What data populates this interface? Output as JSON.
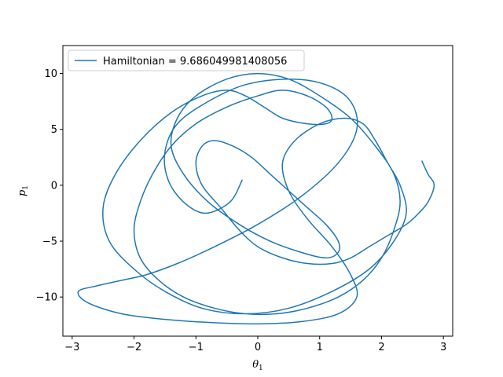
{
  "chart_data": {
    "type": "line",
    "title": "",
    "xlabel": "θ",
    "xlabel_sub": "1",
    "ylabel": "p",
    "ylabel_sub": "1",
    "xlim": [
      -3.15,
      3.15
    ],
    "ylim": [
      -13.5,
      12.5
    ],
    "xticks": [
      -3,
      -2,
      -1,
      0,
      1,
      2,
      3
    ],
    "yticks": [
      -10,
      -5,
      0,
      5,
      10
    ],
    "grid": false,
    "legend_position": "top-left",
    "series": [
      {
        "name": "Hamiltonian = 9.686049981408056",
        "color": "#1f77b4",
        "x": [
          -0.25,
          -0.45,
          -0.85,
          -1.2,
          -1.45,
          -1.5,
          -1.3,
          -0.8,
          -0.2,
          0.5,
          1.1,
          1.5,
          1.6,
          1.3,
          0.7,
          0.0,
          -0.7,
          -1.3,
          -1.8,
          -2.2,
          -2.6,
          -2.9,
          -2.75,
          -2.2,
          -1.5,
          -0.7,
          0.0,
          0.7,
          1.3,
          1.6,
          1.5,
          1.2,
          0.8,
          0.5,
          0.4,
          0.6,
          1.0,
          1.4,
          1.7,
          1.9,
          2.1,
          2.3,
          2.4,
          2.2,
          1.8,
          1.2,
          0.5,
          -0.2,
          -0.9,
          -1.5,
          -2.0,
          -2.4,
          -2.5,
          -2.3,
          -1.9,
          -1.4,
          -0.9,
          -0.5,
          -0.2,
          0.1,
          0.4,
          0.8,
          1.1,
          1.2,
          1.1,
          0.8,
          0.4,
          0.0,
          -0.5,
          -1.0,
          -1.4,
          -1.7,
          -1.9,
          -2.0,
          -1.9,
          -1.6,
          -1.2,
          -0.7,
          -0.2,
          0.3,
          0.8,
          1.3,
          1.7,
          2.0,
          2.2,
          2.3,
          2.2,
          1.9,
          1.5,
          1.0,
          0.5,
          0.0,
          -0.5,
          -1.0,
          -1.3,
          -1.4,
          -1.2,
          -0.8,
          -0.3,
          0.2,
          0.7,
          1.1,
          1.3,
          1.3,
          1.1,
          0.8,
          0.5,
          0.2,
          -0.1,
          -0.4,
          -0.7,
          -0.9,
          -1.0,
          -0.9,
          -0.6,
          -0.3,
          0.0,
          0.4,
          0.8,
          1.2,
          1.5,
          1.8,
          2.1,
          2.4,
          2.6,
          2.75,
          2.85,
          2.75,
          2.65
        ],
        "y": [
          0.5,
          -1.5,
          -2.5,
          -1.5,
          0.5,
          3.0,
          5.5,
          7.5,
          9.0,
          9.5,
          9.0,
          7.5,
          5.0,
          2.0,
          -1.0,
          -3.5,
          -5.5,
          -7.0,
          -8.0,
          -8.5,
          -9.0,
          -9.5,
          -10.5,
          -11.5,
          -12.0,
          -12.3,
          -12.4,
          -12.2,
          -11.5,
          -10.0,
          -8.0,
          -5.5,
          -3.0,
          -0.5,
          2.0,
          4.0,
          5.5,
          6.0,
          5.5,
          4.0,
          2.0,
          0.0,
          -2.5,
          -5.0,
          -7.5,
          -9.5,
          -11.0,
          -11.5,
          -11.0,
          -9.5,
          -7.5,
          -5.0,
          -2.0,
          1.0,
          4.0,
          6.5,
          8.0,
          8.5,
          8.0,
          7.0,
          6.0,
          5.5,
          5.5,
          6.0,
          7.0,
          8.0,
          8.5,
          8.0,
          7.0,
          5.5,
          3.5,
          1.0,
          -1.5,
          -4.0,
          -6.5,
          -8.5,
          -10.0,
          -11.0,
          -11.5,
          -11.5,
          -11.0,
          -10.0,
          -8.5,
          -6.5,
          -4.0,
          -1.5,
          1.0,
          3.5,
          6.0,
          8.0,
          9.5,
          10.0,
          9.5,
          8.0,
          6.0,
          3.5,
          1.0,
          -1.5,
          -3.5,
          -5.0,
          -6.0,
          -6.5,
          -6.0,
          -5.0,
          -3.5,
          -2.0,
          -0.5,
          1.0,
          2.5,
          3.5,
          4.0,
          3.5,
          2.0,
          0.0,
          -2.0,
          -4.0,
          -5.5,
          -6.5,
          -7.0,
          -7.0,
          -6.5,
          -5.5,
          -4.5,
          -3.5,
          -2.5,
          -1.5,
          0.0,
          1.0,
          2.2
        ]
      }
    ]
  }
}
